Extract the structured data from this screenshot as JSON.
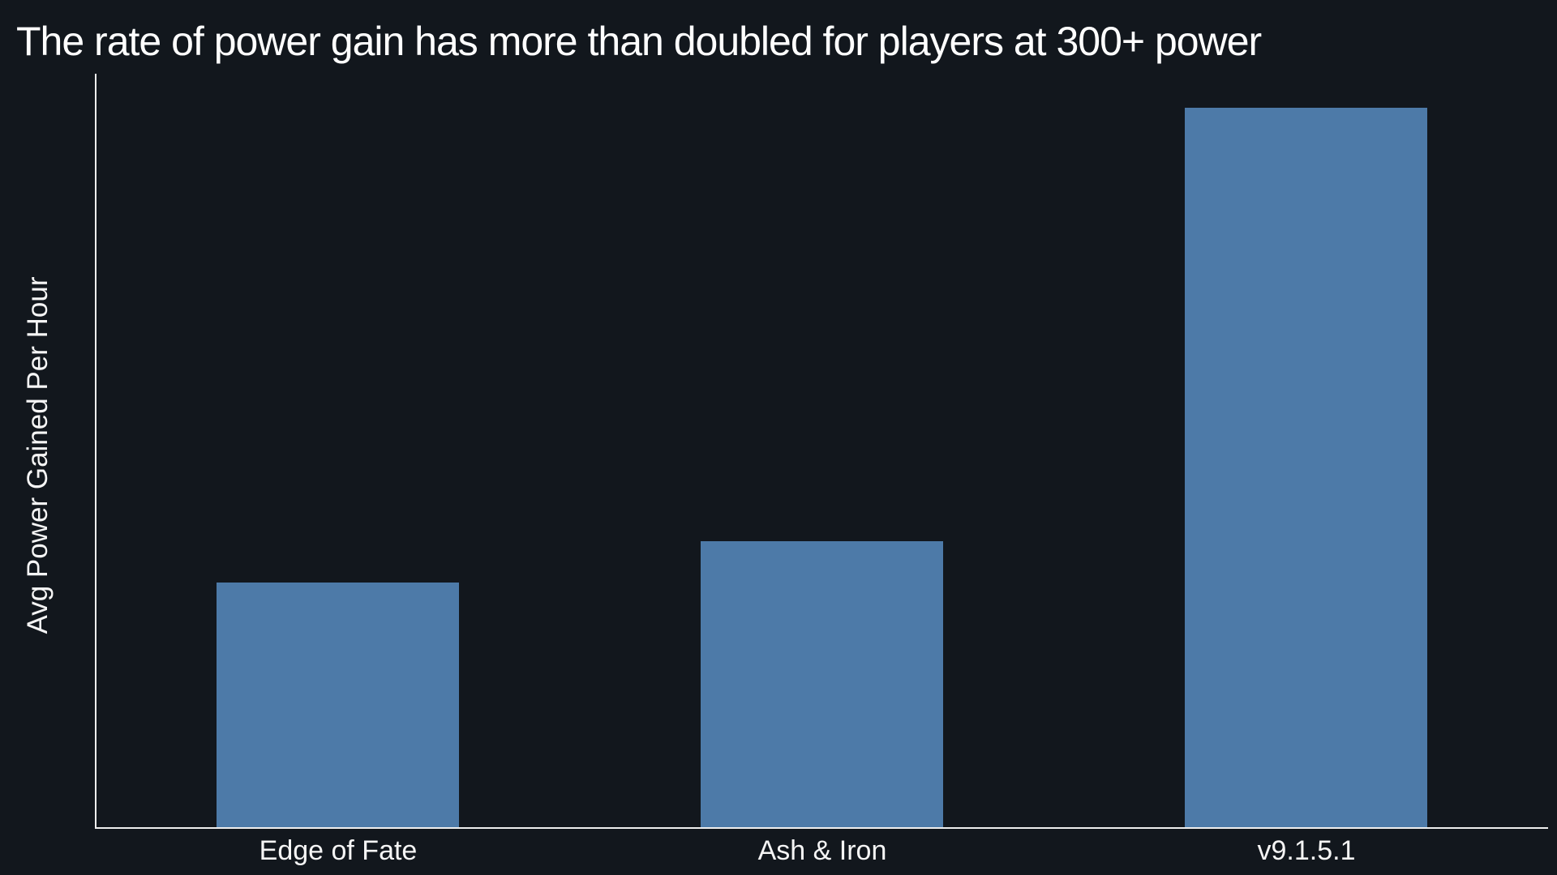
{
  "chart_data": {
    "type": "bar",
    "title": "The rate of power gain has more than doubled for players at 300+ power",
    "xlabel": "",
    "ylabel": "Avg Power Gained Per Hour",
    "categories": [
      "Edge of Fate",
      "Ash & Iron",
      "v9.1.5.1"
    ],
    "values": [
      1.0,
      1.17,
      2.94
    ],
    "ylim": [
      0,
      3.08
    ],
    "grid": false,
    "legend": false,
    "y_tick_labels": [],
    "bar_width_fraction": 0.5,
    "colors": {
      "bar": "#4d7aa8",
      "background": "#12171d",
      "title_text": "#ffffff",
      "label_text": "#f5f5f5",
      "axis_line": "#eeeeee"
    }
  }
}
